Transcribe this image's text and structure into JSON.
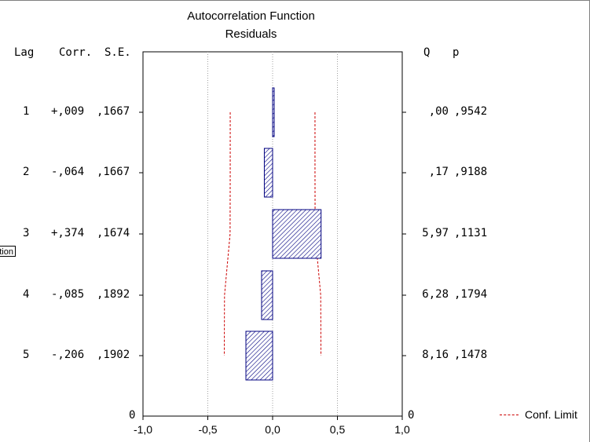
{
  "chart_data": {
    "type": "bar",
    "title": "Autocorrelation Function",
    "subtitle": "Residuals",
    "columns": {
      "lag": "Lag",
      "corr": "Corr.",
      "se": "S.E.",
      "q": "Q",
      "p": "p"
    },
    "rows": [
      {
        "lag": "1",
        "corr": "+,009",
        "se": ",1667",
        "q": ",00",
        "p": ",9542",
        "value": 0.009,
        "conf": 0.327
      },
      {
        "lag": "2",
        "corr": "-,064",
        "se": ",1667",
        "q": ",17",
        "p": ",9188",
        "value": -0.064,
        "conf": 0.327
      },
      {
        "lag": "3",
        "corr": "+,374",
        "se": ",1674",
        "q": "5,97",
        "p": ",1131",
        "value": 0.374,
        "conf": 0.328
      },
      {
        "lag": "4",
        "corr": "-,085",
        "se": ",1892",
        "q": "6,28",
        "p": ",1794",
        "value": -0.085,
        "conf": 0.371
      },
      {
        "lag": "5",
        "corr": "-,206",
        "se": ",1902",
        "q": "8,16",
        "p": ",1478",
        "value": -0.206,
        "conf": 0.373
      }
    ],
    "xlim": [
      -1.0,
      1.0
    ],
    "xticks": [
      "-1,0",
      "-0,5",
      "0,0",
      "0,5",
      "1,0"
    ],
    "xtick_values": [
      -1.0,
      -0.5,
      0.0,
      0.5,
      1.0
    ],
    "y_zero_left": "0",
    "y_zero_right": "0",
    "legend": {
      "label": "Conf. Limit",
      "placement": "bottom-right"
    },
    "grid": true,
    "colors": {
      "bar": "#000080",
      "bar_fill": "#9999dd",
      "conf": "#cc0000",
      "grid": "#a0a0a0"
    }
  },
  "side_tag": "tion"
}
